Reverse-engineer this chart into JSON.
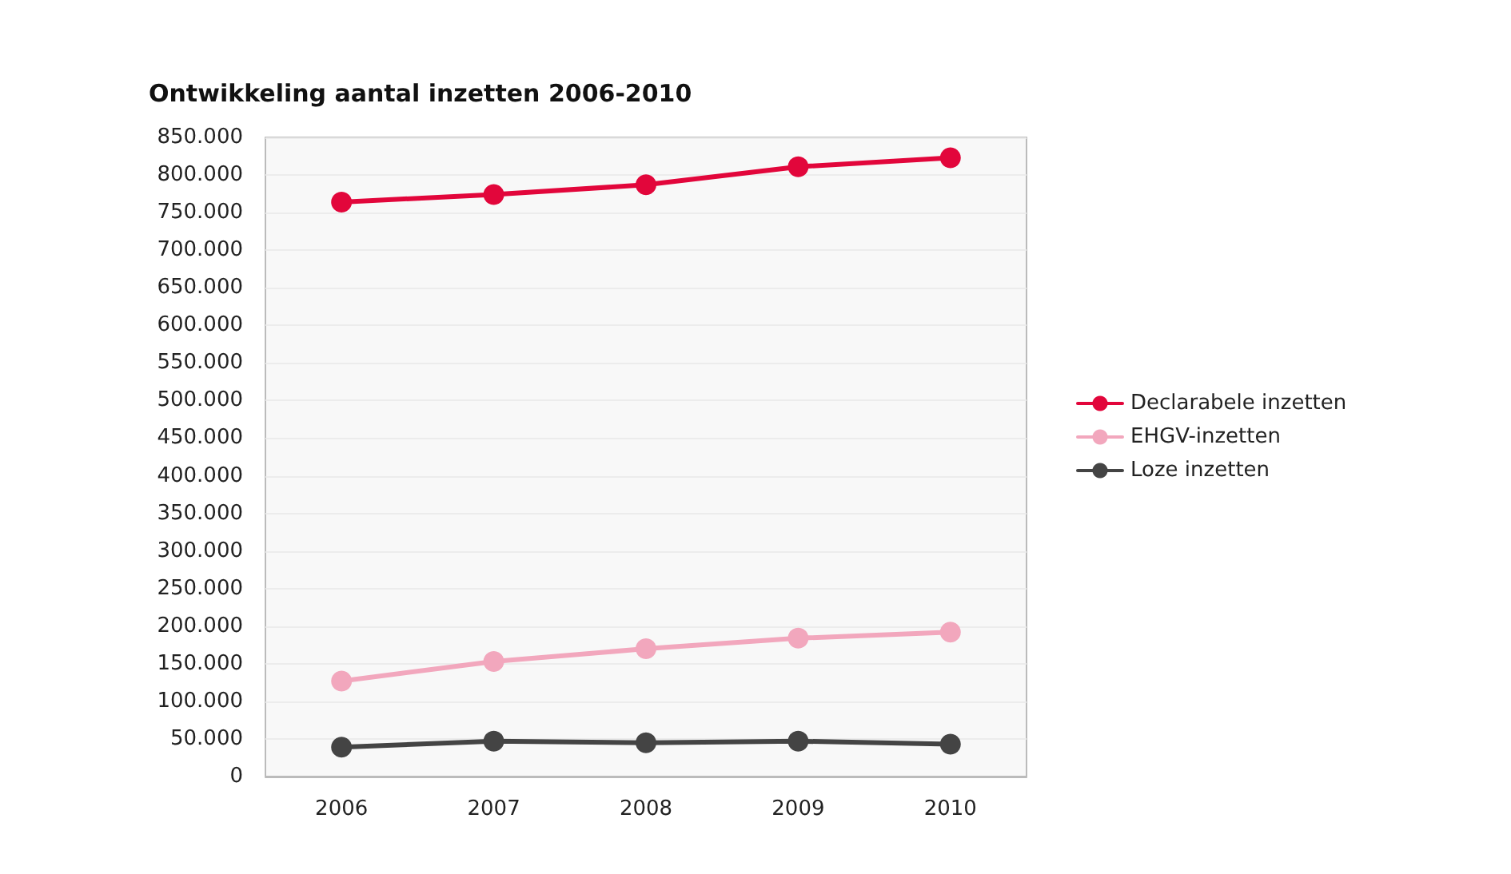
{
  "chart_data": {
    "type": "line",
    "title": "Ontwikkeling aantal inzetten 2006-2010",
    "categories": [
      "2006",
      "2007",
      "2008",
      "2009",
      "2010"
    ],
    "series": [
      {
        "name": "Declarabele inzetten",
        "color": "#e2063b",
        "values": [
          764000,
          774000,
          787000,
          811000,
          823000
        ]
      },
      {
        "name": "EHGV-inzetten",
        "color": "#f2a7bd",
        "values": [
          127000,
          153000,
          170000,
          184000,
          192000
        ]
      },
      {
        "name": "Loze inzetten",
        "color": "#444444",
        "values": [
          39000,
          47000,
          45000,
          47000,
          43000
        ]
      }
    ],
    "ylim": [
      0,
      850000
    ],
    "yticks": [
      0,
      {
        "value": 50000,
        "label": "50.000"
      },
      {
        "value": 100000,
        "label": "100.000"
      },
      {
        "value": 150000,
        "label": "150.000"
      },
      {
        "value": 200000,
        "label": "200.000"
      },
      {
        "value": 250000,
        "label": "250.000"
      },
      {
        "value": 300000,
        "label": "300.000"
      },
      {
        "value": 350000,
        "label": "350.000"
      },
      {
        "value": 400000,
        "label": "400.000"
      },
      {
        "value": 450000,
        "label": "450.000"
      },
      {
        "value": 500000,
        "label": "500.000"
      },
      {
        "value": 550000,
        "label": "550.000"
      },
      {
        "value": 600000,
        "label": "600.000"
      },
      {
        "value": 650000,
        "label": "650.000"
      },
      {
        "value": 700000,
        "label": "700.000"
      },
      {
        "value": 750000,
        "label": "750.000"
      },
      {
        "value": 800000,
        "label": "800.000"
      },
      {
        "value": 850000,
        "label": "850.000"
      }
    ],
    "grid": "y",
    "legend": "right",
    "marker": "circle",
    "line_style": "solid"
  }
}
